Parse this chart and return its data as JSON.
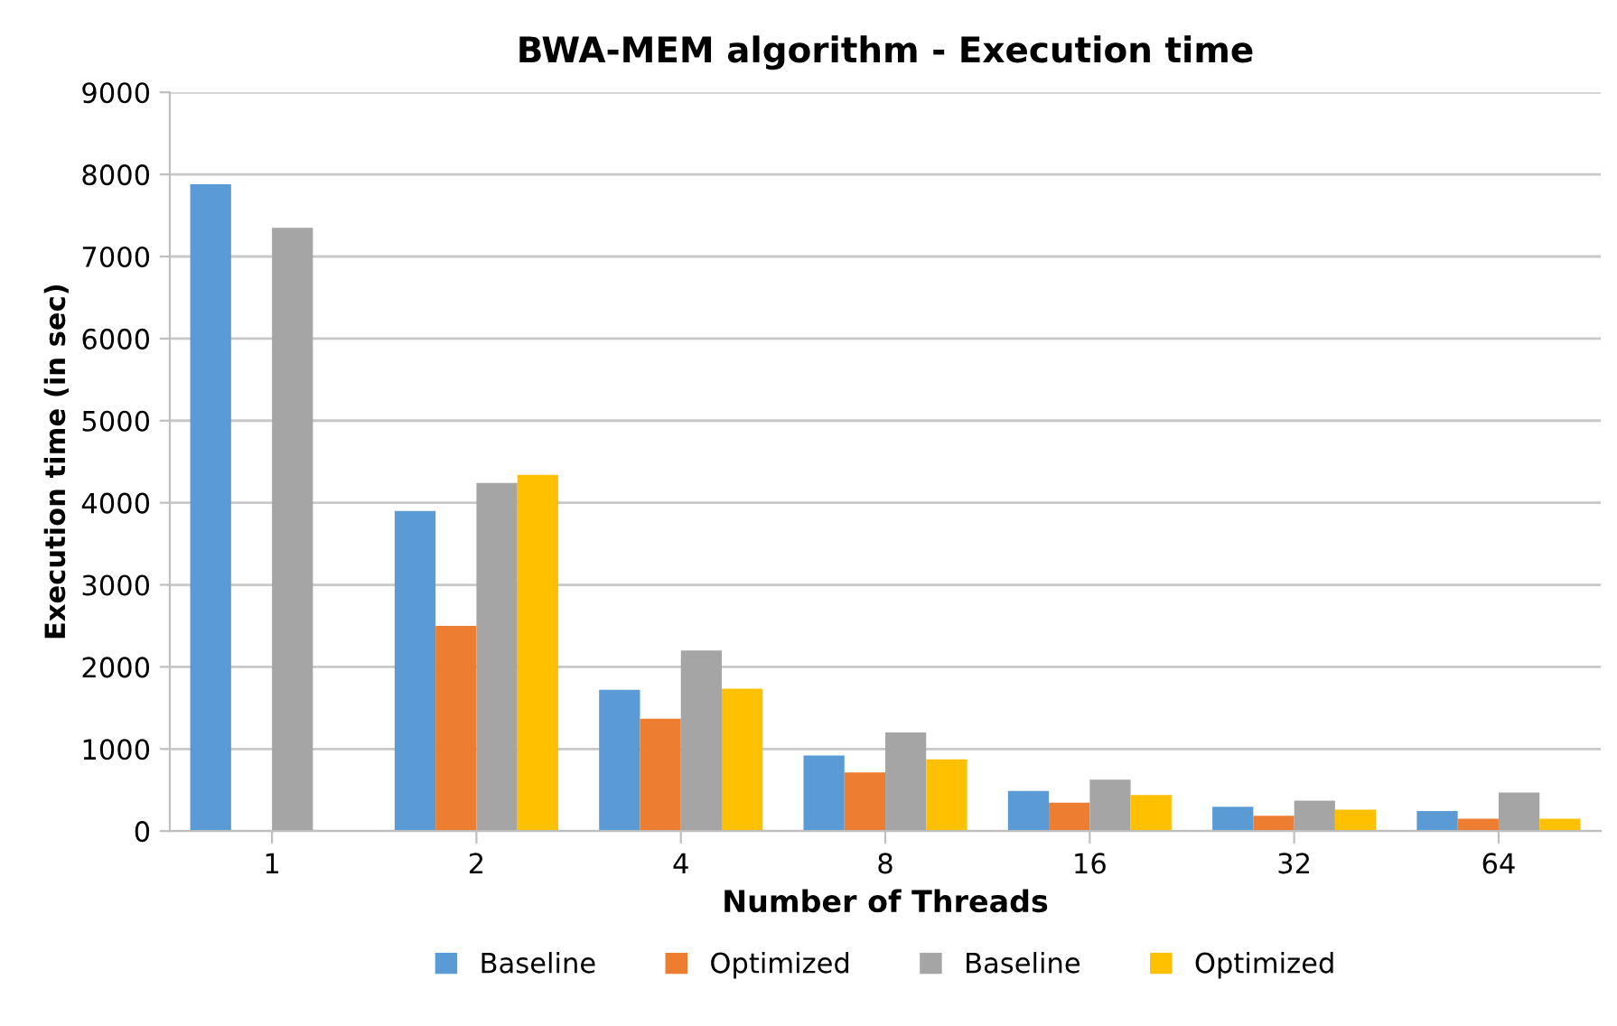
{
  "chart_data": {
    "type": "bar",
    "title": "BWA-MEM algorithm - Execution time",
    "xlabel": "Number of Threads",
    "ylabel": "Execution time (in sec)",
    "categories": [
      "1",
      "2",
      "4",
      "8",
      "16",
      "32",
      "64"
    ],
    "series": [
      {
        "name": "Baseline",
        "color": "#5b9bd5",
        "values": [
          7880,
          3900,
          1720,
          920,
          490,
          295,
          245
        ]
      },
      {
        "name": "Optimized",
        "color": "#ed7d31",
        "values": [
          null,
          2500,
          1370,
          715,
          345,
          185,
          150
        ]
      },
      {
        "name": "Baseline",
        "color": "#a5a5a5",
        "values": [
          7350,
          4240,
          2200,
          1200,
          625,
          370,
          470
        ]
      },
      {
        "name": "Optimized",
        "color": "#ffc000",
        "values": [
          null,
          4340,
          1735,
          875,
          440,
          260,
          150
        ]
      }
    ],
    "ylim": [
      0,
      9000
    ],
    "yticks": [
      0,
      1000,
      2000,
      3000,
      4000,
      5000,
      6000,
      7000,
      8000,
      9000
    ],
    "grid": "y",
    "legend": "bottom"
  }
}
